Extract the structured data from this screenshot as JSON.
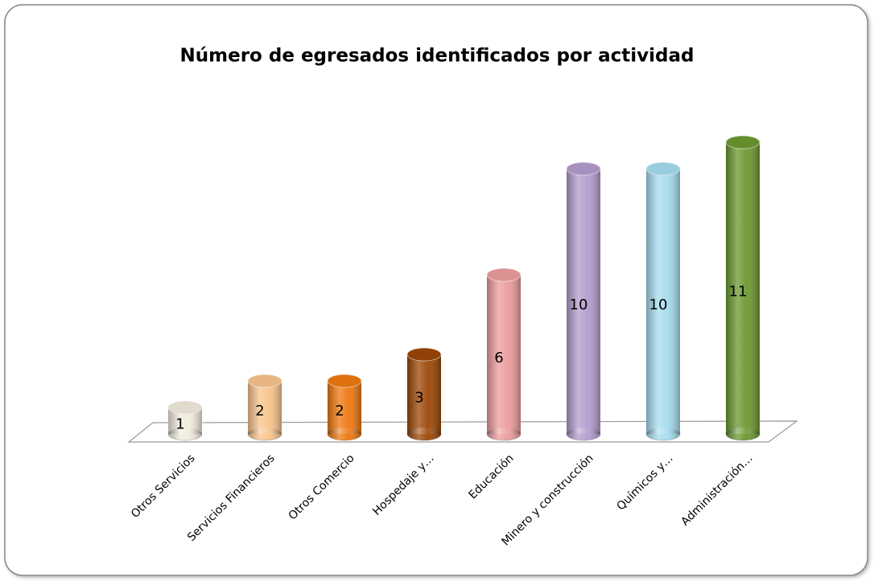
{
  "chart_data": {
    "type": "bar3d",
    "title": "Número de egresados identificados por actividad",
    "categories": [
      "Otros Servicios",
      "Servicios Financieros",
      "Otros Comercio",
      "Hospedaje y…",
      "Educación",
      "Minero y construcción",
      "Químicos y…",
      "Administración…"
    ],
    "values": [
      1,
      2,
      2,
      3,
      6,
      10,
      10,
      11
    ],
    "colors": [
      "#f0ebdc",
      "#f9c48c",
      "#ee7810",
      "#9c4606",
      "#ec9c9e",
      "#b49ccf",
      "#a6dcee",
      "#6c9830"
    ]
  }
}
